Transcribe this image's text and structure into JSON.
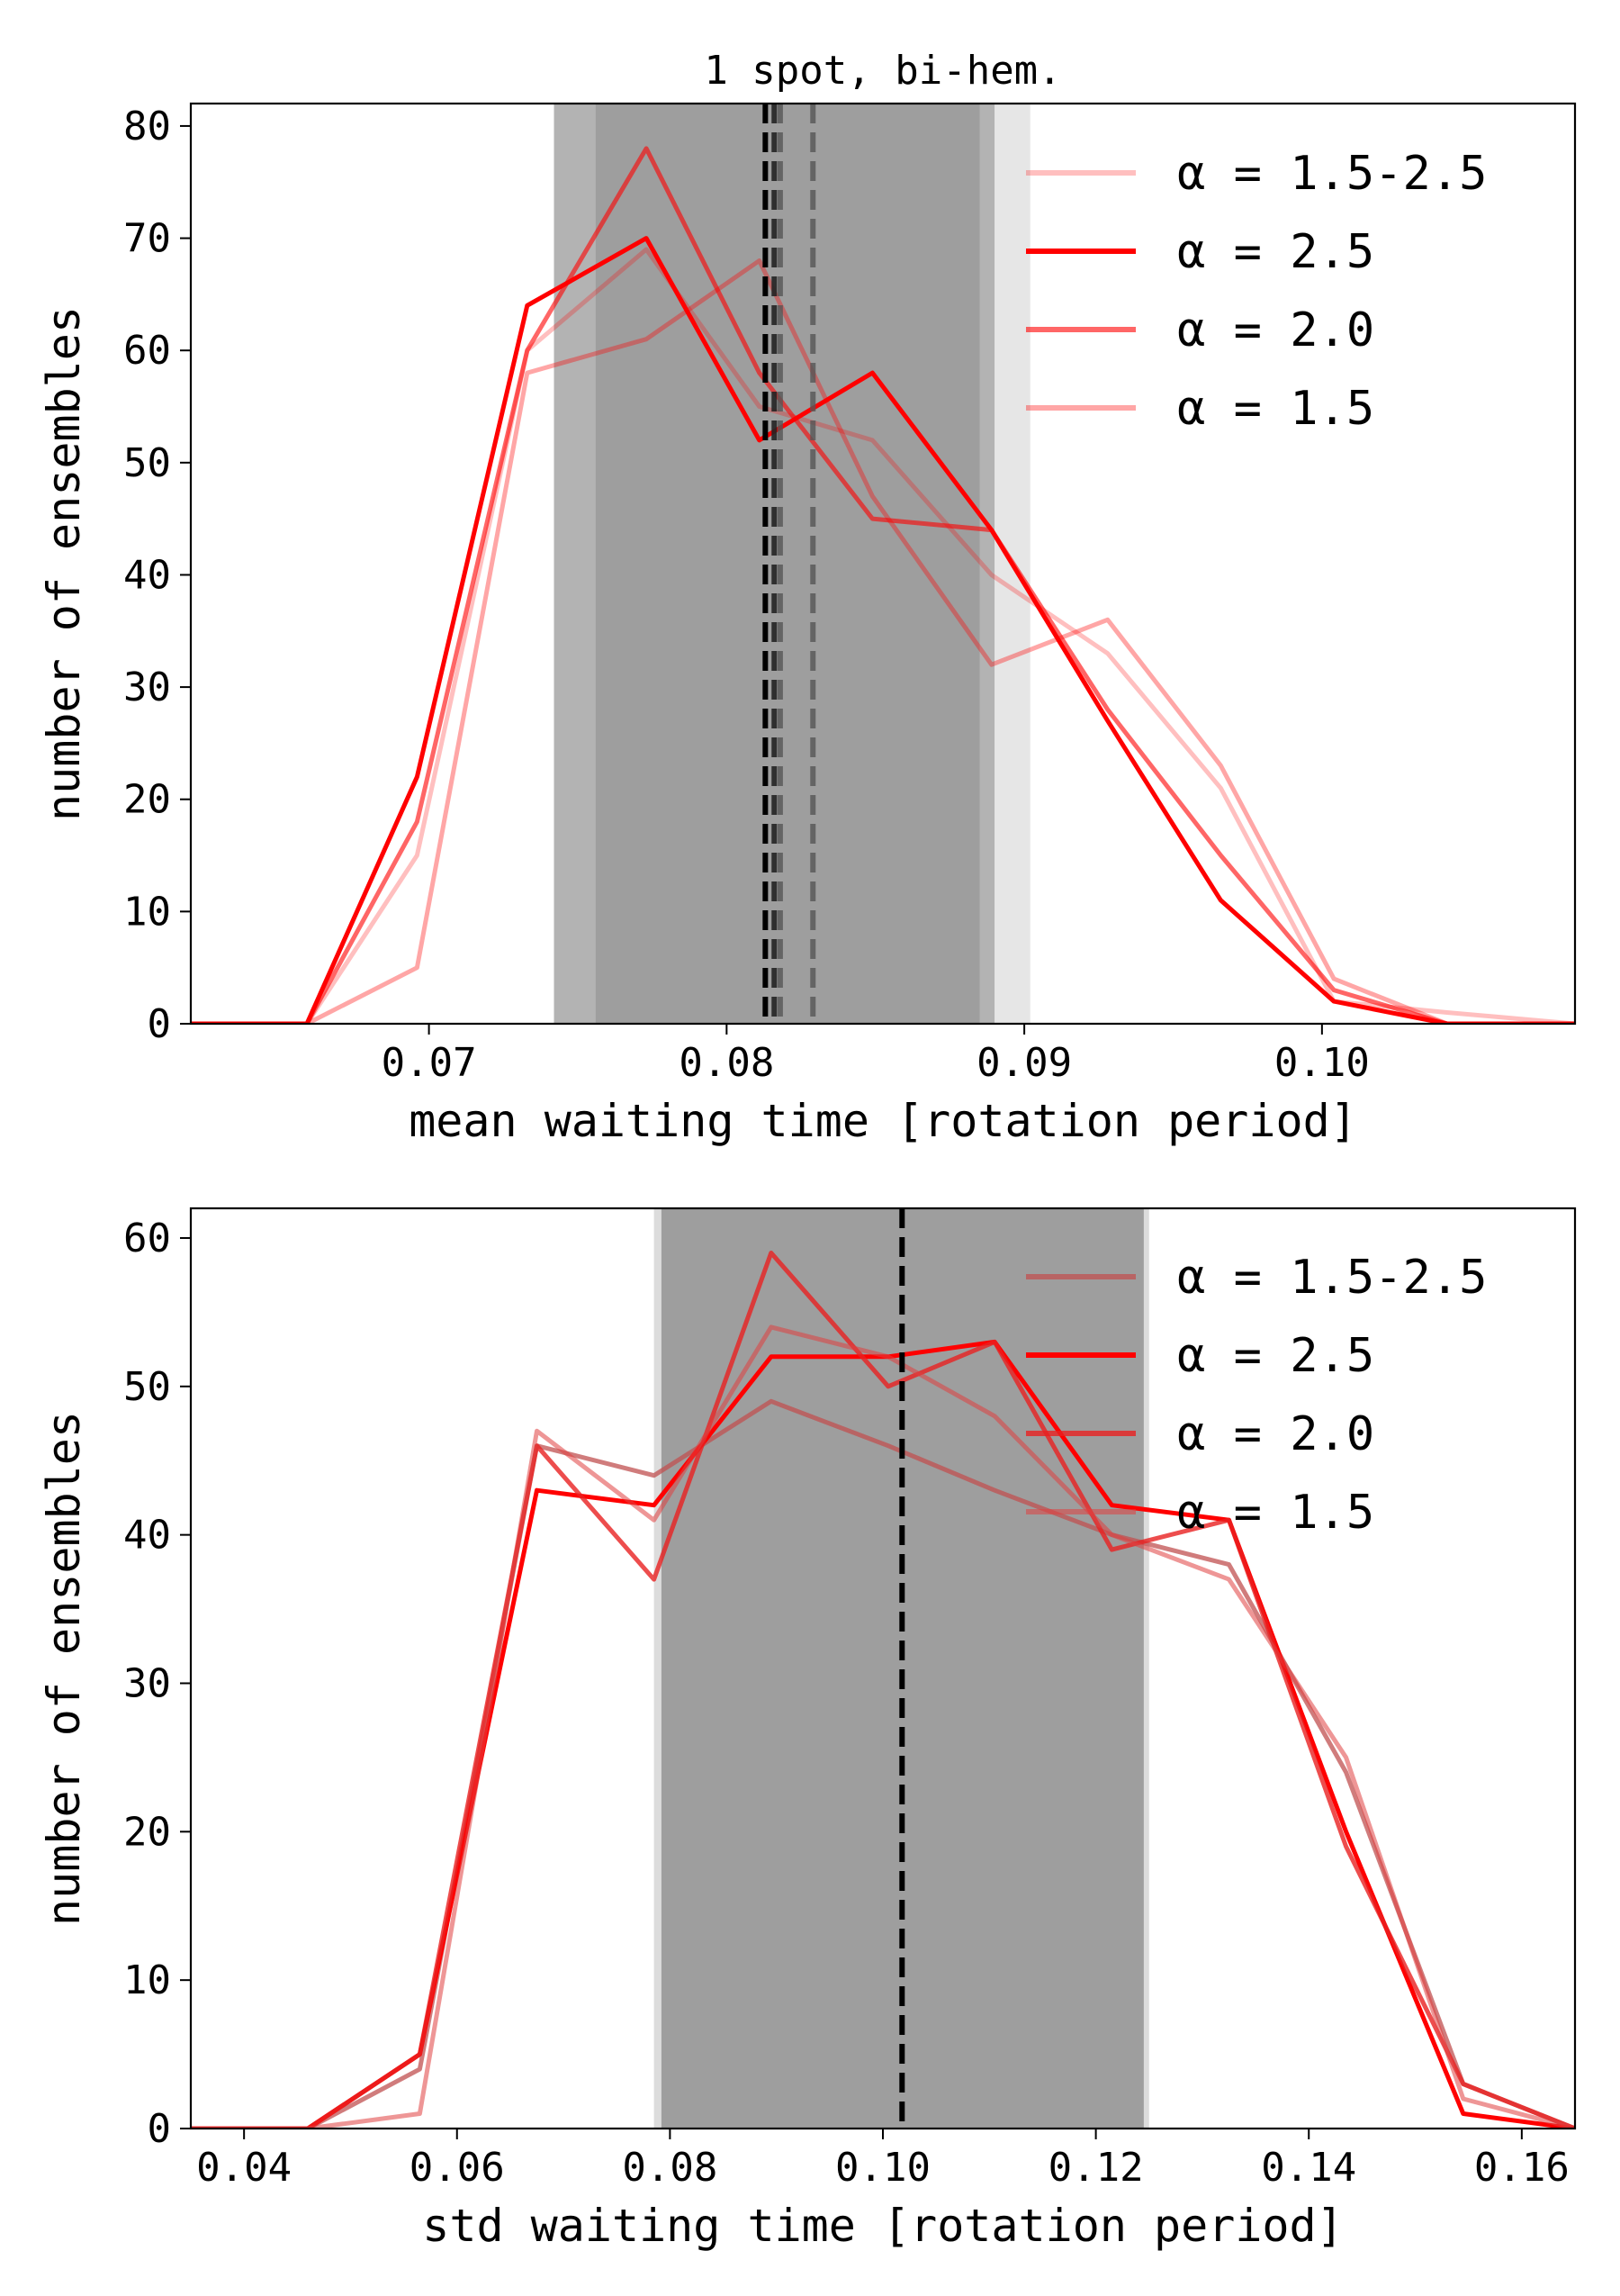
{
  "colors": {
    "band_dark": "#9e9e9e",
    "band_mid": "#b3b3b3",
    "band_light": "#e6e6e6",
    "vline_black": "#000000",
    "vline_gray": "#555555",
    "red": "#ff0000"
  },
  "chart_data": [
    {
      "type": "line",
      "title": "1 spot, bi-hem.",
      "xlabel": "mean waiting time [rotation period]",
      "ylabel": "number of ensembles",
      "xlim": [
        0.062,
        0.1085
      ],
      "ylim": [
        0,
        82
      ],
      "xticks": [
        {
          "value": 0.07,
          "label": "0.07"
        },
        {
          "value": 0.08,
          "label": "0.08"
        },
        {
          "value": 0.09,
          "label": "0.09"
        },
        {
          "value": 0.1,
          "label": "0.10"
        }
      ],
      "yticks": [
        {
          "value": 0,
          "label": "0"
        },
        {
          "value": 10,
          "label": "10"
        },
        {
          "value": 20,
          "label": "20"
        },
        {
          "value": 30,
          "label": "30"
        },
        {
          "value": 40,
          "label": "40"
        },
        {
          "value": 50,
          "label": "50"
        },
        {
          "value": 60,
          "label": "60"
        },
        {
          "value": 70,
          "label": "70"
        },
        {
          "value": 80,
          "label": "80"
        }
      ],
      "legend_position": "top-right",
      "bands": [
        {
          "x0": 0.0742,
          "x1": 0.0902,
          "color": "#e6e6e6"
        },
        {
          "x0": 0.0742,
          "x1": 0.089,
          "color": "#b3b3b3"
        },
        {
          "x0": 0.0756,
          "x1": 0.0885,
          "color": "#9e9e9e"
        }
      ],
      "vlines": [
        {
          "x": 0.0829,
          "color": "#555555",
          "opacity": 0.8
        },
        {
          "x": 0.0818,
          "color": "#555555",
          "opacity": 0.8
        },
        {
          "x": 0.0816,
          "color": "#222222",
          "opacity": 0.9
        },
        {
          "x": 0.0813,
          "color": "#000000",
          "opacity": 1
        }
      ],
      "series": [
        {
          "name": "α = 1.5-2.5",
          "color": "#ff0000",
          "opacity": 0.25,
          "x": [
            0.062,
            0.0659,
            0.0696,
            0.0733,
            0.0773,
            0.0811,
            0.0849,
            0.0889,
            0.0928,
            0.0966,
            0.1004,
            0.1042,
            0.1085
          ],
          "y": [
            0,
            0,
            15,
            60,
            69,
            55,
            52,
            40,
            33,
            21,
            2,
            1,
            0
          ]
        },
        {
          "name": "α = 2.5",
          "color": "#ff0000",
          "opacity": 1,
          "x": [
            0.062,
            0.0659,
            0.0696,
            0.0733,
            0.0773,
            0.0811,
            0.0849,
            0.0889,
            0.0928,
            0.0966,
            0.1004,
            0.1042,
            0.1085
          ],
          "y": [
            0,
            0,
            22,
            64,
            70,
            52,
            58,
            44,
            27,
            11,
            2,
            0,
            0
          ]
        },
        {
          "name": "α = 2.0",
          "color": "#ff0000",
          "opacity": 0.6,
          "x": [
            0.062,
            0.0659,
            0.0696,
            0.0733,
            0.0773,
            0.0811,
            0.0849,
            0.0889,
            0.0928,
            0.0966,
            0.1004,
            0.1042,
            0.1085
          ],
          "y": [
            0,
            0,
            18,
            60,
            78,
            58,
            45,
            44,
            28,
            15,
            3,
            0,
            0
          ]
        },
        {
          "name": "α = 1.5",
          "color": "#ff0000",
          "opacity": 0.35,
          "x": [
            0.062,
            0.0659,
            0.0696,
            0.0733,
            0.0773,
            0.0811,
            0.0849,
            0.0889,
            0.0928,
            0.0966,
            0.1004,
            0.1042,
            0.1085
          ],
          "y": [
            0,
            0,
            5,
            58,
            61,
            68,
            47,
            32,
            36,
            23,
            4,
            0,
            0
          ]
        }
      ]
    },
    {
      "type": "line",
      "title": "",
      "xlabel": "std waiting time [rotation period]",
      "ylabel": "number of ensembles",
      "xlim": [
        0.035,
        0.165
      ],
      "ylim": [
        0,
        62
      ],
      "xticks": [
        {
          "value": 0.04,
          "label": "0.04"
        },
        {
          "value": 0.06,
          "label": "0.06"
        },
        {
          "value": 0.08,
          "label": "0.08"
        },
        {
          "value": 0.1,
          "label": "0.10"
        },
        {
          "value": 0.12,
          "label": "0.12"
        },
        {
          "value": 0.14,
          "label": "0.14"
        },
        {
          "value": 0.16,
          "label": "0.16"
        }
      ],
      "yticks": [
        {
          "value": 0,
          "label": "0"
        },
        {
          "value": 10,
          "label": "10"
        },
        {
          "value": 20,
          "label": "20"
        },
        {
          "value": 30,
          "label": "30"
        },
        {
          "value": 40,
          "label": "40"
        },
        {
          "value": 50,
          "label": "50"
        },
        {
          "value": 60,
          "label": "60"
        }
      ],
      "legend_position": "top-right",
      "bands": [
        {
          "x0": 0.0785,
          "x1": 0.125,
          "color": "#dcdcdc"
        },
        {
          "x0": 0.0792,
          "x1": 0.1245,
          "color": "#9e9e9e"
        }
      ],
      "vlines": [
        {
          "x": 0.1018,
          "color": "#000000",
          "opacity": 1
        }
      ],
      "series": [
        {
          "name": "α = 1.5-2.5",
          "color": "#c05050",
          "opacity": 0.75,
          "x": [
            0.035,
            0.046,
            0.0565,
            0.0675,
            0.0785,
            0.0895,
            0.1005,
            0.1105,
            0.1215,
            0.1325,
            0.1435,
            0.1545,
            0.165
          ],
          "y": [
            0,
            0,
            4,
            46,
            44,
            49,
            46,
            43,
            40,
            38,
            24,
            3,
            0
          ]
        },
        {
          "name": "α = 2.5",
          "color": "#ff0000",
          "opacity": 1,
          "x": [
            0.035,
            0.046,
            0.0565,
            0.0675,
            0.0785,
            0.0895,
            0.1005,
            0.1105,
            0.1215,
            0.1325,
            0.1435,
            0.1545,
            0.165
          ],
          "y": [
            0,
            0,
            5,
            43,
            42,
            52,
            52,
            53,
            42,
            41,
            20,
            1,
            0
          ]
        },
        {
          "name": "α = 2.0",
          "color": "#e82020",
          "opacity": 0.8,
          "x": [
            0.035,
            0.046,
            0.0565,
            0.0675,
            0.0785,
            0.0895,
            0.1005,
            0.1105,
            0.1215,
            0.1325,
            0.1435,
            0.1545,
            0.165
          ],
          "y": [
            0,
            0,
            5,
            46,
            37,
            59,
            50,
            53,
            39,
            41,
            19,
            3,
            0
          ]
        },
        {
          "name": "α = 1.5",
          "color": "#e04040",
          "opacity": 0.55,
          "x": [
            0.035,
            0.046,
            0.0565,
            0.0675,
            0.0785,
            0.0895,
            0.1005,
            0.1105,
            0.1215,
            0.1325,
            0.1435,
            0.1545,
            0.165
          ],
          "y": [
            0,
            0,
            1,
            47,
            41,
            54,
            52,
            48,
            40,
            37,
            25,
            2,
            0
          ]
        }
      ]
    }
  ]
}
